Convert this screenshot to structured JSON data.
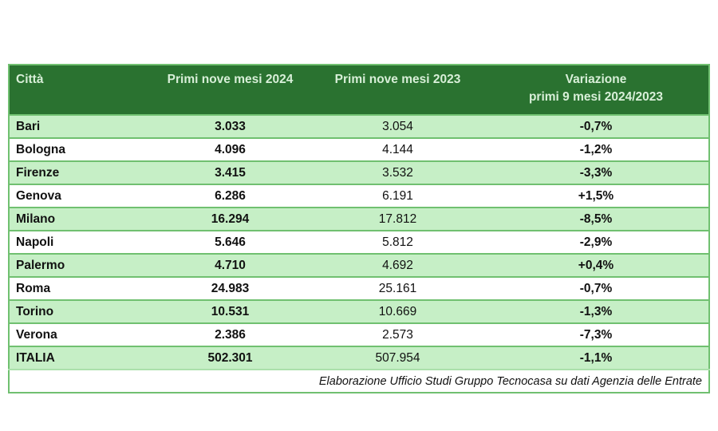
{
  "chart_data": {
    "type": "table",
    "title": "",
    "columns": [
      "Città",
      "Primi nove mesi 2024",
      "Primi nove mesi 2023",
      "Variazione primi 9 mesi 2024/2023"
    ],
    "rows": [
      [
        "Bari",
        "3.033",
        "3.054",
        "-0,7%"
      ],
      [
        "Bologna",
        "4.096",
        "4.144",
        "-1,2%"
      ],
      [
        "Firenze",
        "3.415",
        "3.532",
        "-3,3%"
      ],
      [
        "Genova",
        "6.286",
        "6.191",
        "+1,5%"
      ],
      [
        "Milano",
        "16.294",
        "17.812",
        "-8,5%"
      ],
      [
        "Napoli",
        "5.646",
        "5.812",
        "-2,9%"
      ],
      [
        "Palermo",
        "4.710",
        "4.692",
        "+0,4%"
      ],
      [
        "Roma",
        "24.983",
        "25.161",
        "-0,7%"
      ],
      [
        "Torino",
        "10.531",
        "10.669",
        "-1,3%"
      ],
      [
        "Verona",
        "2.386",
        "2.573",
        "-7,3%"
      ],
      [
        "ITALIA",
        "502.301",
        "507.954",
        "-1,1%"
      ]
    ],
    "source_note": "Elaborazione Ufficio Studi Gruppo Tecnocasa su dati Agenzia delle Entrate"
  },
  "table": {
    "header": {
      "city": "Città",
      "months2024": "Primi nove mesi 2024",
      "months2023": "Primi nove mesi 2023",
      "variation_line1": "Variazione",
      "variation_line2": "primi 9 mesi 2024/2023"
    },
    "rows": [
      {
        "city": "Bari",
        "v2024": "3.033",
        "v2023": "3.054",
        "variation": "-0,7%"
      },
      {
        "city": "Bologna",
        "v2024": "4.096",
        "v2023": "4.144",
        "variation": "-1,2%"
      },
      {
        "city": "Firenze",
        "v2024": "3.415",
        "v2023": "3.532",
        "variation": "-3,3%"
      },
      {
        "city": "Genova",
        "v2024": "6.286",
        "v2023": "6.191",
        "variation": "+1,5%"
      },
      {
        "city": "Milano",
        "v2024": "16.294",
        "v2023": "17.812",
        "variation": "-8,5%"
      },
      {
        "city": "Napoli",
        "v2024": "5.646",
        "v2023": "5.812",
        "variation": "-2,9%"
      },
      {
        "city": "Palermo",
        "v2024": "4.710",
        "v2023": "4.692",
        "variation": "+0,4%"
      },
      {
        "city": "Roma",
        "v2024": "24.983",
        "v2023": "25.161",
        "variation": "-0,7%"
      },
      {
        "city": "Torino",
        "v2024": "10.531",
        "v2023": "10.669",
        "variation": "-1,3%"
      },
      {
        "city": "Verona",
        "v2024": "2.386",
        "v2023": "2.573",
        "variation": "-7,3%"
      },
      {
        "city": "ITALIA",
        "v2024": "502.301",
        "v2023": "507.954",
        "variation": "-1,1%"
      }
    ],
    "footer_note": "Elaborazione Ufficio Studi Gruppo Tecnocasa su dati Agenzia delle Entrate"
  },
  "colors": {
    "header_bg": "#2a7230",
    "header_text": "#d8efd8",
    "row_bg": "#ffffff",
    "row_alt_bg": "#c6efc6",
    "border": "#70c070",
    "footer_border": "#abe0ab",
    "text": "#111111"
  }
}
